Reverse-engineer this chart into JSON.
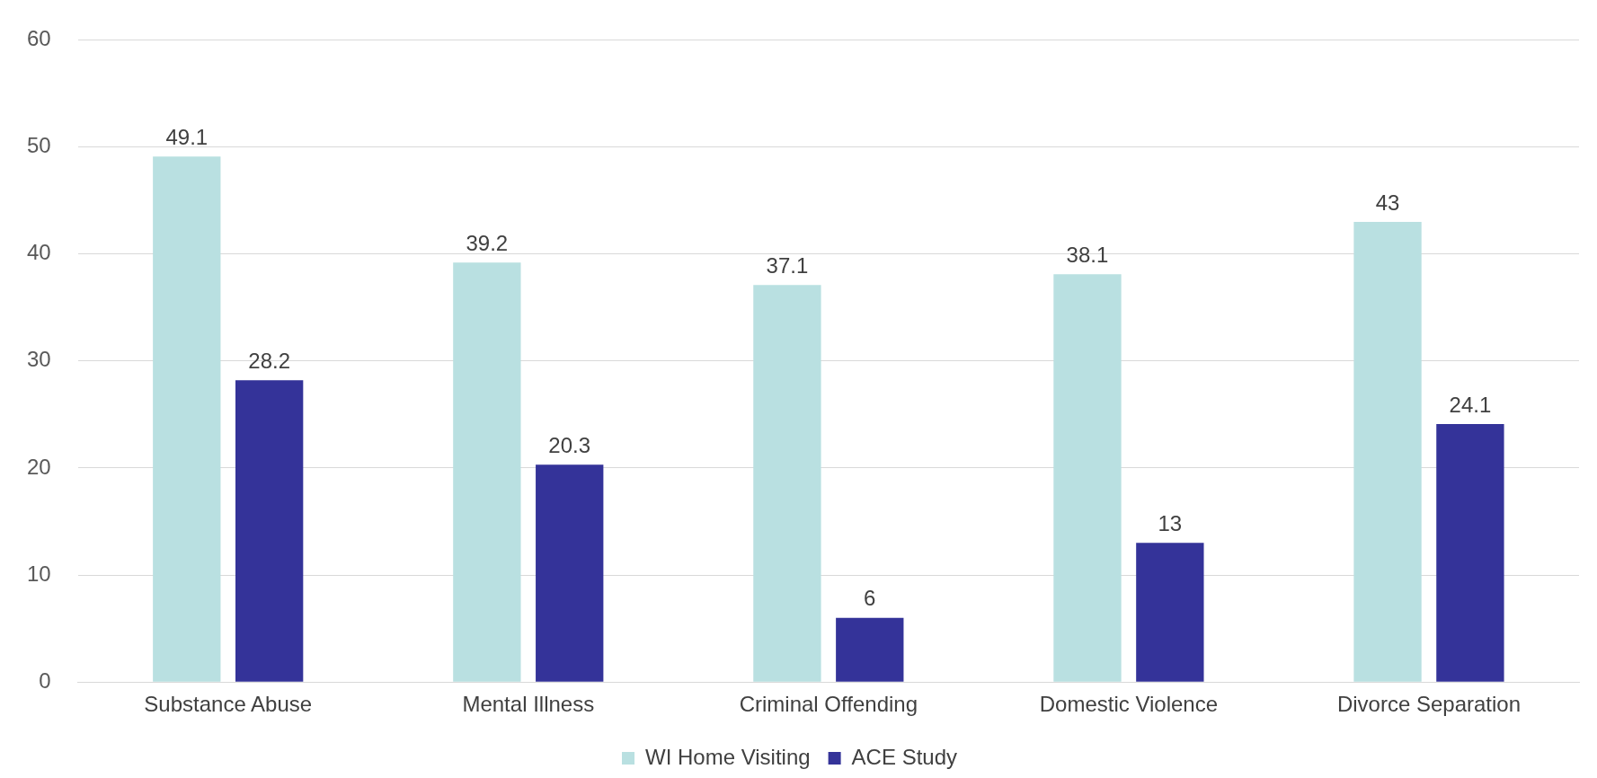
{
  "chart_data": {
    "type": "bar",
    "categories": [
      "Substance Abuse",
      "Mental Illness",
      "Criminal Offending",
      "Domestic Violence",
      "Divorce Separation"
    ],
    "series": [
      {
        "name": "WI Home Visiting",
        "color": "#b9e0e1",
        "values": [
          49.1,
          39.2,
          37.1,
          38.1,
          43
        ]
      },
      {
        "name": "ACE Study",
        "color": "#343399",
        "values": [
          28.2,
          20.3,
          6,
          13,
          24.1
        ]
      }
    ],
    "ylim": [
      0,
      60
    ],
    "yticks": [
      0,
      10,
      20,
      30,
      40,
      50,
      60
    ],
    "grid": "y",
    "legend": "bottom",
    "data_labels": true
  }
}
